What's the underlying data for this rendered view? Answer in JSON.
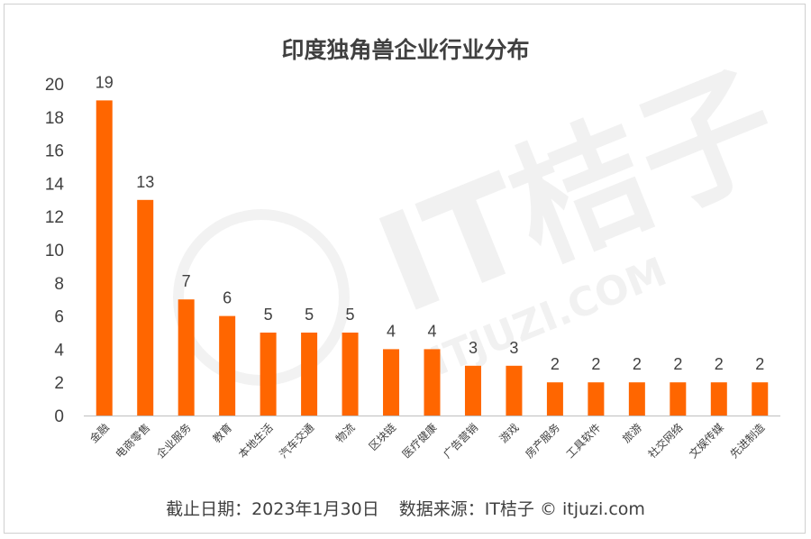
{
  "footer": {
    "date": "截止日期：2023年1月30日",
    "source": "数据来源：IT桔子 © itjuzi.com"
  },
  "watermark": {
    "brand": "IT桔子",
    "site": "ITJUZI.COM"
  },
  "colors": {
    "bar": "#ff6600",
    "axis": "#bfbfbf",
    "text": "#404040"
  },
  "chart_data": {
    "type": "bar",
    "title": "印度独角兽企业行业分布",
    "xlabel": "",
    "ylabel": "",
    "ylim": [
      0,
      20
    ],
    "yticks": [
      0,
      2,
      4,
      6,
      8,
      10,
      12,
      14,
      16,
      18,
      20
    ],
    "grid": false,
    "legend": "none",
    "data_labels": true,
    "categories": [
      "金融",
      "电商零售",
      "企业服务",
      "教育",
      "本地生活",
      "汽车交通",
      "物流",
      "区块链",
      "医疗健康",
      "广告营销",
      "游戏",
      "房产服务",
      "工具软件",
      "旅游",
      "社交网络",
      "文娱传媒",
      "先进制造"
    ],
    "values": [
      19,
      13,
      7,
      6,
      5,
      5,
      5,
      4,
      4,
      3,
      3,
      2,
      2,
      2,
      2,
      2,
      2
    ]
  }
}
